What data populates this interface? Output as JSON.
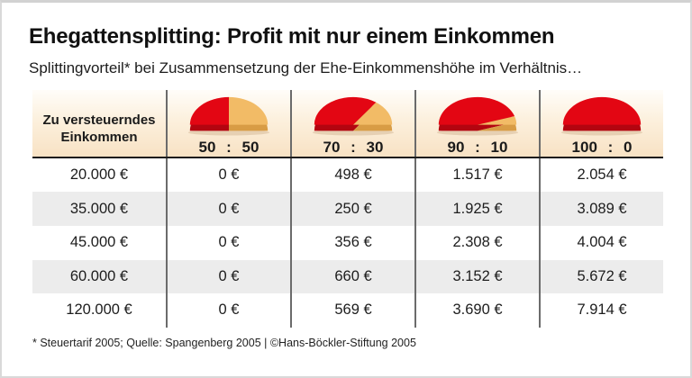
{
  "colors": {
    "pie_red": "#e30613",
    "pie_red_dark": "#b30510",
    "pie_tan": "#f2bb66",
    "pie_tan_dark": "#d89c45",
    "header_beige": "#f8e2c4",
    "row_stripe": "#ececec",
    "divider_gray": "#6b6b6b",
    "text_black": "#1a1a1a"
  },
  "header": {
    "title": "Ehegattensplitting: Profit mit nur einem Einkommen",
    "subtitle": "Splittingvorteil* bei Zusammensetzung der Ehe-Einkommenshöhe im Verhältnis…"
  },
  "chart_data": {
    "type": "table",
    "title": "Ehegattensplitting: Profit mit nur einem Einkommen",
    "subtitle": "Splittingvorteil* bei Zusammensetzung der Ehe-Einkommenshöhe im Verhältnis…",
    "row_header": {
      "line1": "Zu versteuerndes",
      "line2": "Einkommen"
    },
    "columns": [
      {
        "label": "50 : 50",
        "ratio": [
          50,
          50
        ]
      },
      {
        "label": "70 : 30",
        "ratio": [
          70,
          30
        ]
      },
      {
        "label": "90 : 10",
        "ratio": [
          90,
          10
        ]
      },
      {
        "label": "100 : 0",
        "ratio": [
          100,
          0
        ]
      }
    ],
    "rows": [
      {
        "income": "20.000 €",
        "income_eur": 20000,
        "cells": [
          "0 €",
          "498 €",
          "1.517 €",
          "2.054 €"
        ],
        "values_eur": [
          0,
          498,
          1517,
          2054
        ]
      },
      {
        "income": "35.000 €",
        "income_eur": 35000,
        "cells": [
          "0 €",
          "250 €",
          "1.925 €",
          "3.089 €"
        ],
        "values_eur": [
          0,
          250,
          1925,
          3089
        ]
      },
      {
        "income": "45.000 €",
        "income_eur": 45000,
        "cells": [
          "0 €",
          "356 €",
          "2.308 €",
          "4.004 €"
        ],
        "values_eur": [
          0,
          356,
          2308,
          4004
        ]
      },
      {
        "income": "60.000 €",
        "income_eur": 60000,
        "cells": [
          "0 €",
          "660 €",
          "3.152 €",
          "5.672 €"
        ],
        "values_eur": [
          0,
          660,
          3152,
          5672
        ]
      },
      {
        "income": "120.000 €",
        "income_eur": 120000,
        "cells": [
          "0 €",
          "569 €",
          "3.690 €",
          "7.914 €"
        ],
        "values_eur": [
          0,
          569,
          3690,
          7914
        ]
      }
    ],
    "footnote": "* Steuertarif 2005; Quelle: Spangenberg 2005 | ©Hans-Böckler-Stiftung 2005"
  },
  "footnote": "* Steuertarif 2005; Quelle: Spangenberg 2005 | ©Hans-Böckler-Stiftung 2005"
}
